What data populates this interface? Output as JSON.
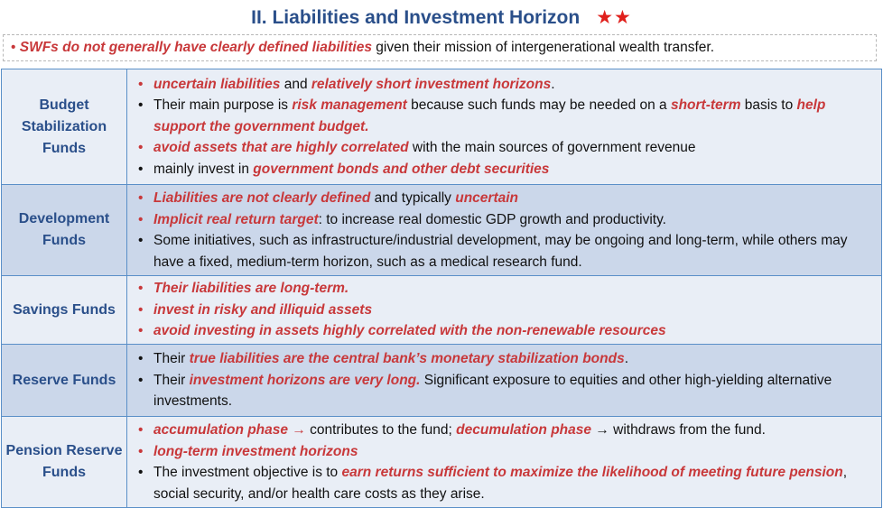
{
  "title": {
    "text": "II. Liabilities and Investment Horizon",
    "stars": "★★"
  },
  "intro": {
    "bullet": "•",
    "emphasis": "SWFs do not generally have clearly defined liabilities",
    "rest": " given their mission of intergenerational wealth transfer."
  },
  "rows": [
    {
      "label": "Budget Stabilization Funds",
      "shade": "light",
      "items": [
        {
          "bullet_color": "red",
          "parts": [
            {
              "t": "uncertain liabilities",
              "e": true
            },
            {
              "t": " and ",
              "e": false
            },
            {
              "t": "relatively short investment horizons",
              "e": true
            },
            {
              "t": ".",
              "e": false
            }
          ]
        },
        {
          "bullet_color": "black",
          "parts": [
            {
              "t": "Their main purpose is ",
              "e": false
            },
            {
              "t": "risk management",
              "e": true
            },
            {
              "t": " because such funds may be needed on a ",
              "e": false
            },
            {
              "t": "short-term",
              "e": true
            },
            {
              "t": " basis to ",
              "e": false
            },
            {
              "t": "help support the government budget.",
              "e": true
            }
          ]
        },
        {
          "bullet_color": "red",
          "parts": [
            {
              "t": "avoid assets that are highly correlated",
              "e": true
            },
            {
              "t": " with the main sources of government revenue",
              "e": false
            }
          ]
        },
        {
          "bullet_color": "black",
          "parts": [
            {
              "t": "mainly invest in ",
              "e": false
            },
            {
              "t": "government bonds and other debt securities",
              "e": true
            }
          ]
        }
      ]
    },
    {
      "label": "Development Funds",
      "shade": "dark",
      "items": [
        {
          "bullet_color": "red",
          "parts": [
            {
              "t": "Liabilities are not clearly defined",
              "e": true
            },
            {
              "t": " and typically ",
              "e": false
            },
            {
              "t": "uncertain",
              "e": true
            }
          ]
        },
        {
          "bullet_color": "red",
          "parts": [
            {
              "t": "Implicit real return target",
              "e": true
            },
            {
              "t": ": to increase real domestic GDP growth and productivity.",
              "e": false
            }
          ]
        },
        {
          "bullet_color": "black",
          "parts": [
            {
              "t": "Some initiatives, such as infrastructure/industrial development, may be ongoing and long-term, while others may have a fixed, medium-term horizon, such as a medical research fund.",
              "e": false
            }
          ]
        }
      ]
    },
    {
      "label": "Savings Funds",
      "shade": "light",
      "items": [
        {
          "bullet_color": "red",
          "parts": [
            {
              "t": "Their liabilities are long-term.",
              "e": true
            }
          ]
        },
        {
          "bullet_color": "red",
          "parts": [
            {
              "t": "invest in risky and illiquid assets",
              "e": true
            }
          ]
        },
        {
          "bullet_color": "red",
          "parts": [
            {
              "t": "avoid investing in assets highly correlated with the non-renewable resources",
              "e": true
            }
          ]
        }
      ]
    },
    {
      "label": "Reserve Funds",
      "shade": "dark",
      "items": [
        {
          "bullet_color": "black",
          "parts": [
            {
              "t": "Their ",
              "e": false
            },
            {
              "t": "true liabilities are the central bank’s monetary stabilization bonds",
              "e": true
            },
            {
              "t": ".",
              "e": false
            }
          ]
        },
        {
          "bullet_color": "black",
          "parts": [
            {
              "t": "Their ",
              "e": false
            },
            {
              "t": "investment horizons are very long.",
              "e": true
            },
            {
              "t": " Significant exposure to equities and other high-yielding alternative investments.",
              "e": false
            }
          ]
        }
      ]
    },
    {
      "label": "Pension Reserve Funds",
      "shade": "light",
      "items": [
        {
          "bullet_color": "red",
          "parts": [
            {
              "t": "accumulation phase →",
              "e": true
            },
            {
              "t": " contributes to the fund; ",
              "e": false
            },
            {
              "t": "decumulation phase",
              "e": true
            },
            {
              "t": " → withdraws from the fund.",
              "e": false
            }
          ]
        },
        {
          "bullet_color": "red",
          "parts": [
            {
              "t": "long-term investment horizons",
              "e": true
            }
          ]
        },
        {
          "bullet_color": "black",
          "parts": [
            {
              "t": "The investment objective is to ",
              "e": false
            },
            {
              "t": "earn returns sufficient to maximize the likelihood of meeting future pension",
              "e": true
            },
            {
              "t": ", social security, and/or health care costs as they arise.",
              "e": false
            }
          ]
        }
      ]
    }
  ],
  "bullet_glyph": "•",
  "colors": {
    "title": "#2a4f8a",
    "emphasis": "#c8383a",
    "stars": "#e0201c",
    "border": "#5a8fc8",
    "row_light": "#e9eef6",
    "row_dark": "#cbd7ea"
  }
}
